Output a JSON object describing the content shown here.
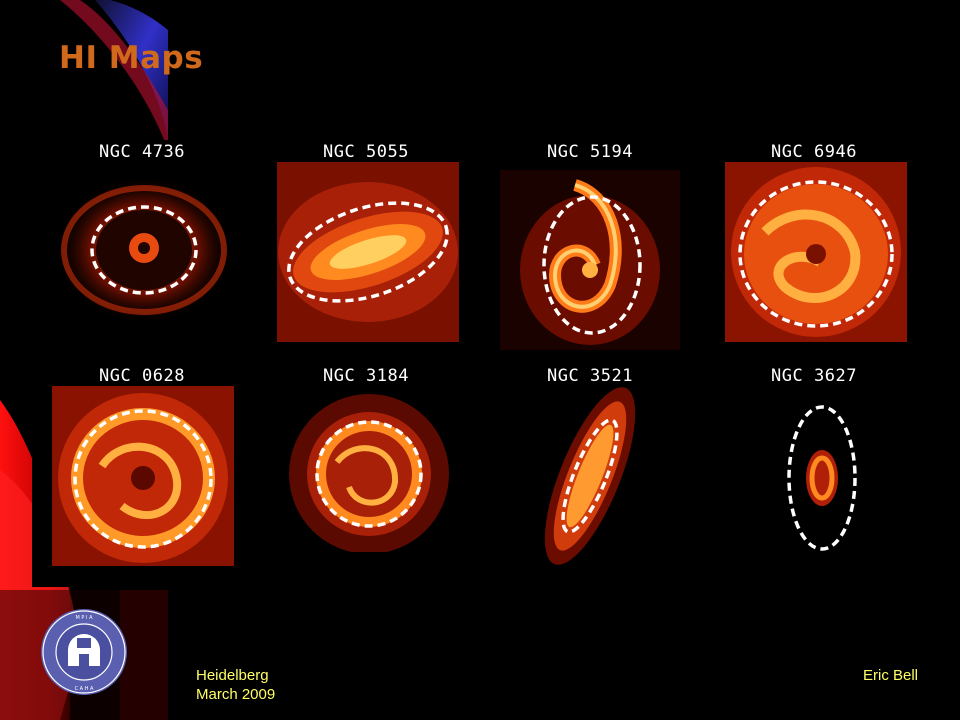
{
  "slide": {
    "title": "HI Maps",
    "galaxies": [
      {
        "name": "NGC 4736"
      },
      {
        "name": "NGC 5055"
      },
      {
        "name": "NGC 5194"
      },
      {
        "name": "NGC 6946"
      },
      {
        "name": "NGC 0628"
      },
      {
        "name": "NGC 3184"
      },
      {
        "name": "NGC 3521"
      },
      {
        "name": "NGC 3627"
      }
    ]
  },
  "footer": {
    "location": "Heidelberg",
    "date": "March 2009",
    "author": "Eric Bell"
  },
  "logo": {
    "icon": "observatory-seal-icon",
    "ring_text": "MAX-PLANCK-INSTITUT FÜR ASTRONOMIE HEIDELBERG · CENTRO ASTRONOMICO HISPANO ALEMAN ALMERIA"
  },
  "colors": {
    "title": "#d0691c",
    "footer_text": "#ffff66",
    "map_glow": "#ff8a1a",
    "background": "#000000"
  }
}
